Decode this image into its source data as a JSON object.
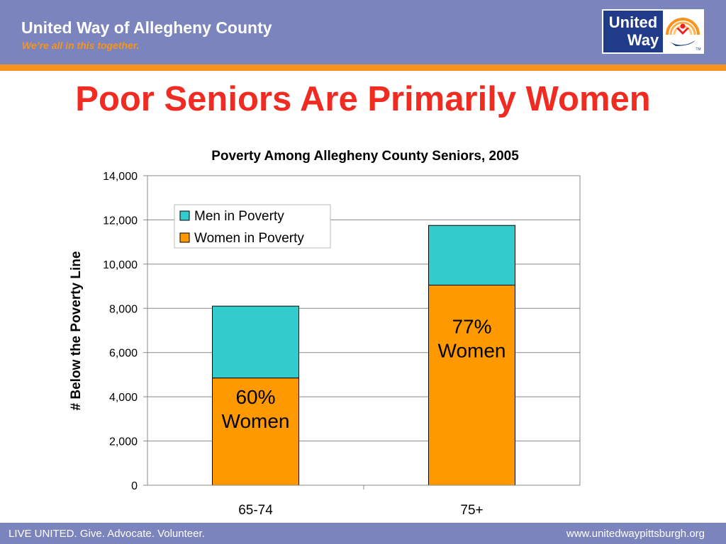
{
  "header": {
    "org_name": "United Way of Allegheny County",
    "tagline": "We’re all in this together.",
    "logo_text": [
      "United",
      "Way"
    ],
    "logo_tm": "TM",
    "colors": {
      "band": "#7c84bd",
      "accent": "#f7941d",
      "logo_blue": "#1f3b8a"
    }
  },
  "slide": {
    "title": "Poor Seniors Are Primarily Women",
    "title_color": "#f02c22"
  },
  "chart_data": {
    "type": "bar",
    "stacked": true,
    "title": "Poverty Among Allegheny County Seniors, 2005",
    "xlabel": "",
    "ylabel": "# Below the Poverty Line",
    "categories": [
      "65-74",
      "75+"
    ],
    "series": [
      {
        "name": "Women in Poverty",
        "values": [
          4850,
          9050
        ],
        "color": "#ff9900"
      },
      {
        "name": "Men in Poverty",
        "values": [
          3250,
          2700
        ],
        "color": "#33cccc"
      }
    ],
    "ylim": [
      0,
      14000
    ],
    "yticks": [
      0,
      2000,
      4000,
      6000,
      8000,
      10000,
      12000,
      14000
    ],
    "ytick_labels": [
      "0",
      "2,000",
      "4,000",
      "6,000",
      "8,000",
      "10,000",
      "12,000",
      "14,000"
    ],
    "grid": true,
    "legend_position": "top-left",
    "legend_order": [
      "Men in Poverty",
      "Women in Poverty"
    ],
    "annotations": [
      {
        "category": "65-74",
        "lines": [
          "60%",
          "Women"
        ]
      },
      {
        "category": "75+",
        "lines": [
          "77%",
          "Women"
        ]
      }
    ]
  },
  "footer": {
    "left": "LIVE UNITED. Give. Advocate. Volunteer.",
    "right": "www.unitedwaypittsburgh.org"
  }
}
